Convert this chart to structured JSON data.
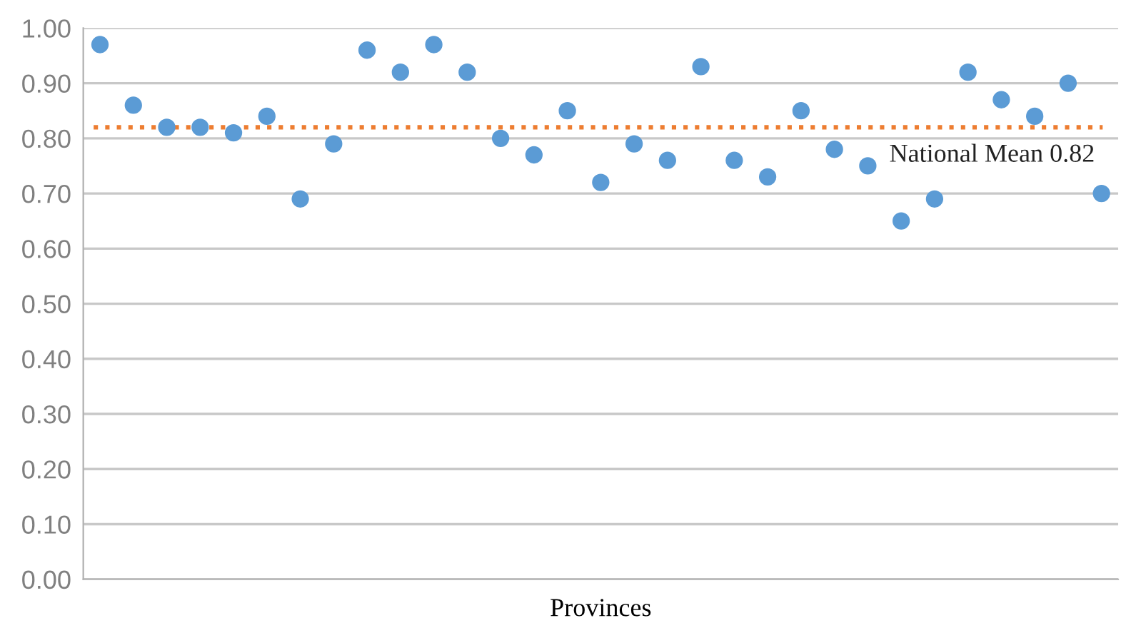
{
  "chart_data": {
    "type": "scatter",
    "xlabel": "Provinces",
    "categories": [
      null,
      null,
      null,
      null,
      null,
      null,
      null,
      null,
      null,
      null,
      null,
      null,
      null,
      null,
      null,
      null,
      null,
      null,
      null,
      null,
      null,
      null,
      null,
      null,
      null,
      null,
      null,
      null,
      null,
      null,
      null
    ],
    "series": [
      {
        "color": "#5b9bd5",
        "values": [
          0.97,
          0.86,
          0.82,
          0.82,
          0.81,
          0.84,
          0.69,
          0.79,
          0.96,
          0.92,
          0.97,
          0.92,
          0.8,
          0.77,
          0.85,
          0.72,
          0.79,
          0.76,
          0.93,
          0.76,
          0.73,
          0.85,
          0.78,
          0.75,
          0.65,
          0.69,
          0.92,
          0.87,
          0.84,
          0.9,
          0.7
        ]
      }
    ],
    "ylim": [
      0,
      1
    ],
    "yticks": [
      {
        "value": 0,
        "label": "0.00"
      },
      {
        "value": 0.1,
        "label": "0.10"
      },
      {
        "value": 0.2,
        "label": "0.20"
      },
      {
        "value": 0.3,
        "label": "0.30"
      },
      {
        "value": 0.4,
        "label": "0.40"
      },
      {
        "value": 0.5,
        "label": "0.50"
      },
      {
        "value": 0.6,
        "label": "0.60"
      },
      {
        "value": 0.7,
        "label": "0.70"
      },
      {
        "value": 0.8,
        "label": "0.80"
      },
      {
        "value": 0.9,
        "label": "0.90"
      },
      {
        "value": 1,
        "label": "1.00"
      }
    ],
    "grid": "y",
    "marker": "circle",
    "ref_lines": [
      {
        "axis": "y",
        "value": 0.82,
        "label": "National Mean 0.82",
        "color": "#ed7d31",
        "line_style": "dotted"
      }
    ]
  }
}
